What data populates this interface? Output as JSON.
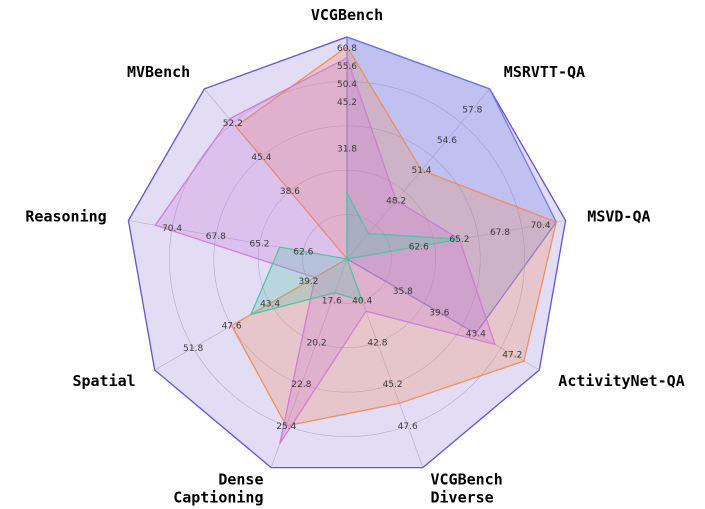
{
  "chart_data": {
    "type": "radar",
    "axes": [
      {
        "label": [
          "VCGBench"
        ],
        "ticks": [
          "31.8",
          "45.2",
          "50.4",
          "55.6",
          "60.8"
        ],
        "range": [
          0,
          64
        ]
      },
      {
        "label": [
          "MSRVTT-QA"
        ],
        "ticks": [
          "48.2",
          "51.4",
          "54.6",
          "57.8"
        ],
        "range": [
          42,
          60
        ]
      },
      {
        "label": [
          "MSVD-QA"
        ],
        "ticks": [
          "62.6",
          "65.2",
          "67.8",
          "70.4"
        ],
        "range": [
          58,
          72
        ]
      },
      {
        "label": [
          "ActivityNet-QA"
        ],
        "ticks": [
          "35.8",
          "39.6",
          "43.4",
          "47.2"
        ],
        "range": [
          30,
          50
        ]
      },
      {
        "label": [
          "VCGBench",
          "Diverse"
        ],
        "ticks": [
          "40.4",
          "42.8",
          "45.2",
          "47.6"
        ],
        "range": [
          38,
          50
        ]
      },
      {
        "label": [
          "Dense",
          "Captioning"
        ],
        "ticks": [
          "17.6",
          "20.2",
          "22.8",
          "25.4"
        ],
        "range": [
          15,
          28
        ]
      },
      {
        "label": [
          "Spatial"
        ],
        "ticks": [
          "39.2",
          "43.4",
          "47.6",
          "51.8"
        ],
        "range": [
          35,
          56
        ]
      },
      {
        "label": [
          "Reasoning"
        ],
        "ticks": [
          "62.6",
          "65.2",
          "67.8",
          "70.4"
        ],
        "range": [
          60,
          73
        ]
      },
      {
        "label": [
          "MVBench"
        ],
        "ticks": [
          "38.6",
          "45.4",
          "52.2"
        ],
        "range": [
          25,
          59
        ]
      }
    ],
    "series": [
      {
        "color": "#6b79e6",
        "values": [
          64,
          60,
          71.4,
          43.4,
          38,
          15,
          35,
          60,
          25
        ]
      },
      {
        "color": "#f08c5a",
        "values": [
          61.2,
          51.4,
          71.4,
          48.4,
          46.3,
          25.4,
          47.6,
          60,
          51.5
        ]
      },
      {
        "color": "#d07ad6",
        "values": [
          58,
          48.2,
          65.2,
          45.4,
          41.0,
          26.5,
          38.5,
          71.4,
          53.0
        ]
      },
      {
        "color": "#4fc4a4",
        "values": [
          19,
          44.7,
          65.2,
          30,
          40.4,
          17.1,
          45.5,
          64.0,
          25
        ]
      }
    ],
    "outer_fill": "#ddd7f3",
    "outer_stroke": "#5f55d8",
    "grid": true
  }
}
